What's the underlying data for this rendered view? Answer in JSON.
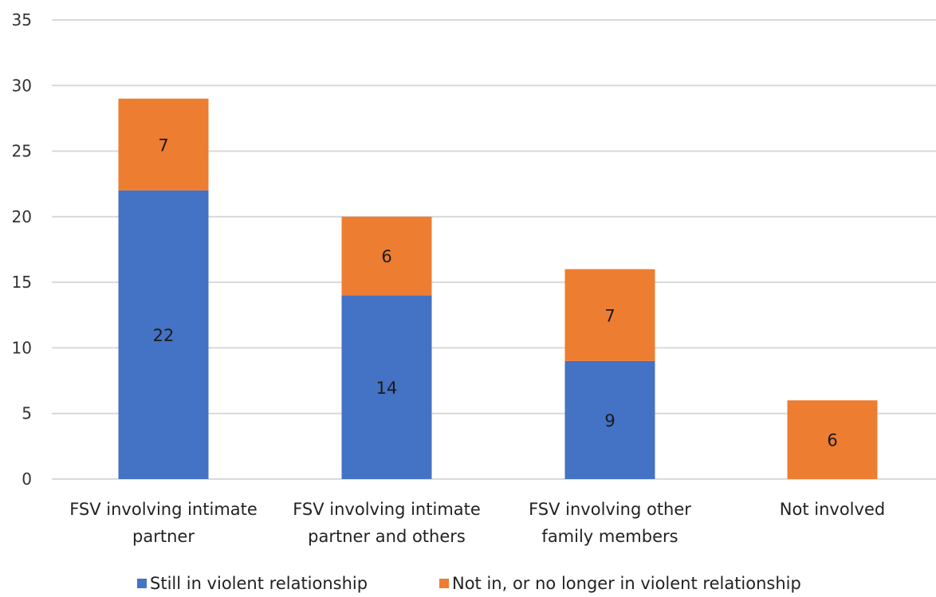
{
  "chart_data": {
    "type": "bar",
    "stacked": true,
    "categories": [
      [
        "FSV involving intimate",
        "partner"
      ],
      [
        "FSV involving intimate",
        "partner and others"
      ],
      [
        "FSV involving other",
        "family members"
      ],
      [
        "Not involved"
      ]
    ],
    "series": [
      {
        "name": "Still in violent relationship",
        "values": [
          22,
          14,
          9,
          0
        ],
        "color": "#4472C4"
      },
      {
        "name": "Not in, or no longer in violent relationship",
        "values": [
          7,
          6,
          7,
          6
        ],
        "color": "#ED7D31"
      }
    ],
    "ylim": [
      0,
      35
    ],
    "yticks": [
      0,
      5,
      10,
      15,
      20,
      25,
      30,
      35
    ],
    "grid": true,
    "legend_position": "bottom",
    "gridline_color": "#d9d9d9"
  }
}
